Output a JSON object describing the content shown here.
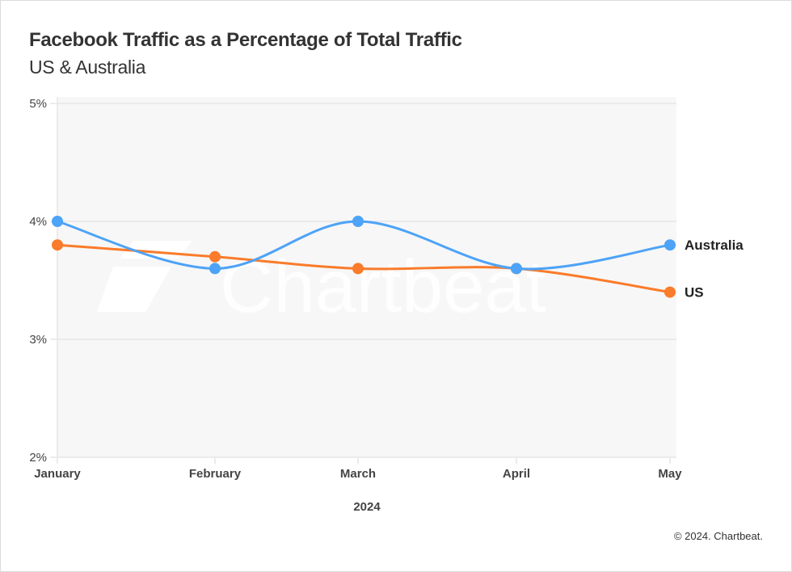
{
  "header": {
    "title": "Facebook Traffic as a Percentage of Total Traffic",
    "subtitle": "US & Australia"
  },
  "footer": {
    "credit": "© 2024. Chartbeat."
  },
  "watermark": "Chartbeat",
  "chart_data": {
    "type": "line",
    "title": "Facebook Traffic as a Percentage of Total Traffic",
    "subtitle": "US & Australia",
    "xlabel": "2024",
    "ylabel": "",
    "categories": [
      "January",
      "February",
      "March",
      "April",
      "May"
    ],
    "y_ticks": [
      2,
      3,
      4,
      5
    ],
    "y_tick_labels": [
      "2%",
      "3%",
      "4%",
      "5%"
    ],
    "ylim": [
      2,
      5
    ],
    "grid": true,
    "legend": "inline-right",
    "series": [
      {
        "name": "Australia",
        "color": "#4da3f7",
        "values": [
          4.0,
          3.6,
          4.0,
          3.6,
          3.8
        ]
      },
      {
        "name": "US",
        "color": "#fa7b2a",
        "values": [
          3.8,
          3.7,
          3.6,
          3.6,
          3.4
        ]
      }
    ]
  }
}
